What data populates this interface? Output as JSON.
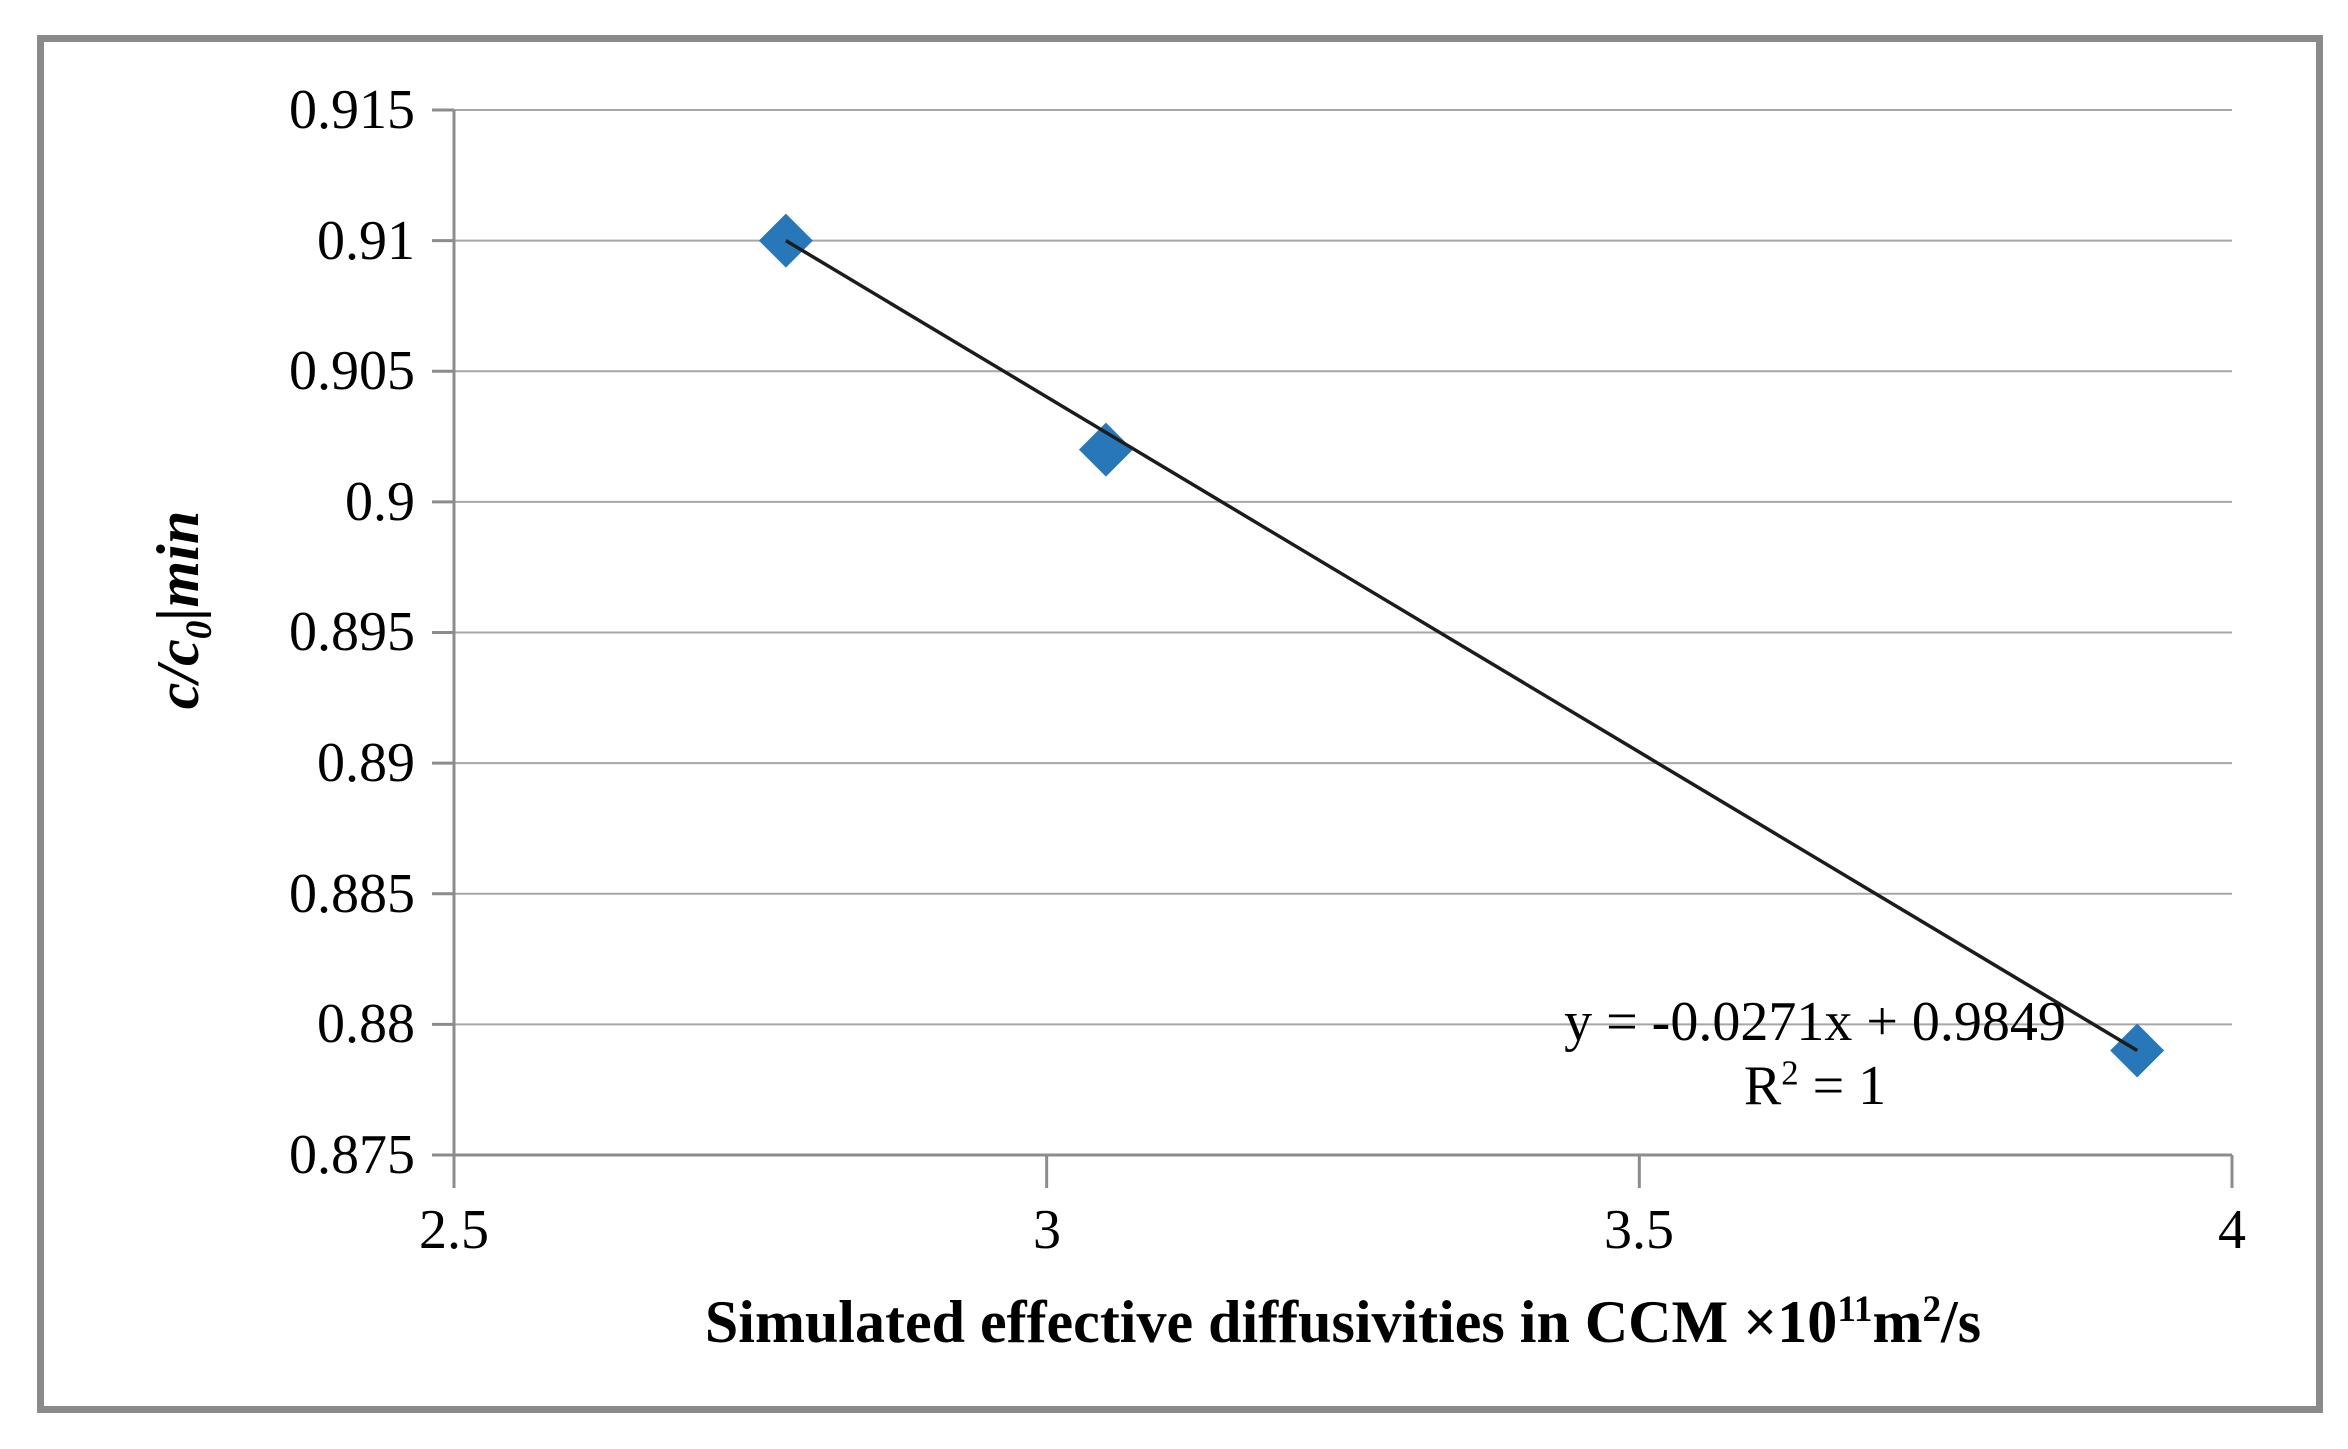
{
  "chart_data": {
    "type": "scatter",
    "title": "",
    "xlabel": "Simulated effective diffusivities in CCM ×10¹¹m²/s",
    "ylabel": "c/c₀|min",
    "xlim": [
      2.5,
      4
    ],
    "ylim": [
      0.875,
      0.915
    ],
    "grid": "horizontal-only",
    "legend": "none",
    "xticks": [
      {
        "label": "2.5",
        "value": 2.5
      },
      {
        "label": "3",
        "value": 3
      },
      {
        "label": "3.5",
        "value": 3.5
      },
      {
        "label": "4",
        "value": 4
      }
    ],
    "yticks": [
      {
        "label": "0.915",
        "value": 0.915
      },
      {
        "label": "0.91",
        "value": 0.91
      },
      {
        "label": "0.905",
        "value": 0.905
      },
      {
        "label": "0.9",
        "value": 0.9
      },
      {
        "label": "0.895",
        "value": 0.895
      },
      {
        "label": "0.89",
        "value": 0.89
      },
      {
        "label": "0.885",
        "value": 0.885
      },
      {
        "label": "0.88",
        "value": 0.88
      },
      {
        "label": "0.875",
        "value": 0.875
      }
    ],
    "series": [
      {
        "marker": "diamond",
        "color": "#2878B9",
        "points": [
          {
            "x": 2.78,
            "y": 0.91
          },
          {
            "x": 3.05,
            "y": 0.902
          },
          {
            "x": 3.92,
            "y": 0.879
          }
        ]
      }
    ],
    "trendline": {
      "slope": -0.0271,
      "intercept": 0.9849,
      "style": "solid",
      "color": "#1C1C1C"
    },
    "annotation": {
      "equation": "y = -0.0271x + 0.9849",
      "r2_base": "R",
      "r2_sup": "2",
      "r2_rest": " = 1"
    }
  },
  "axis_titles": {
    "x_prefix": "Simulated effective diffusivities in CCM ×10",
    "x_sup1": "11",
    "x_mid": "m",
    "x_sup2": "2",
    "x_suffix": "/s",
    "y_c": "c/c",
    "y_sub": "0",
    "y_rest": "|min"
  },
  "colors": {
    "marker": "#2878B9",
    "trendline": "#1C1C1C",
    "gridline": "#A6A6A6",
    "axis": "#8C8C8C",
    "border": "#8A8A8A",
    "text": "#000000"
  }
}
